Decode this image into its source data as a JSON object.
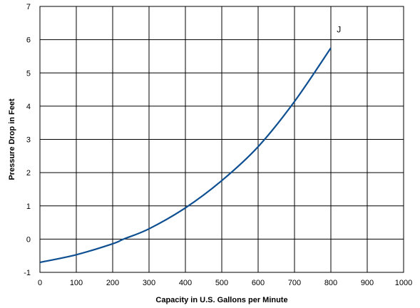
{
  "chart_data": {
    "type": "line",
    "xlabel": "Capacity in U.S. Gallons per Minute",
    "ylabel": "Pressure Drop in Feet",
    "xlim": [
      0,
      1000
    ],
    "ylim": [
      -1,
      7
    ],
    "x_ticks": [
      0,
      100,
      200,
      300,
      400,
      500,
      600,
      700,
      800,
      900,
      1000
    ],
    "y_ticks": [
      -1,
      0,
      1,
      2,
      3,
      4,
      5,
      6,
      7
    ],
    "grid": true,
    "legend": "none",
    "line_color": "#0d4f91",
    "series": [
      {
        "name": "J",
        "x": [
          0,
          100,
          200,
          230,
          300,
          400,
          500,
          600,
          700,
          800
        ],
        "y": [
          -0.7,
          -0.47,
          -0.14,
          0.0,
          0.31,
          0.94,
          1.76,
          2.78,
          4.14,
          5.75
        ]
      }
    ],
    "annotations": [
      {
        "text": "J",
        "x": 830,
        "y": 6.3
      }
    ]
  }
}
